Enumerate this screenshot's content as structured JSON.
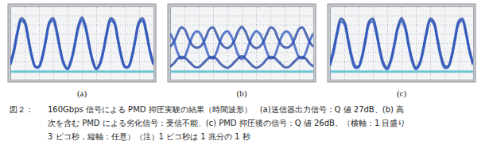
{
  "chart_data": [
    {
      "type": "line",
      "title": "(a)",
      "grid": true,
      "tick_labels": false,
      "xlim": [
        0,
        30
      ],
      "ylim": [
        0,
        1
      ],
      "xticks": [
        0,
        3,
        6,
        9,
        12,
        15,
        18,
        21,
        24,
        27,
        30
      ],
      "yticks": [
        0,
        0.125,
        0.25,
        0.375,
        0.5,
        0.625,
        0.75,
        0.875,
        1
      ],
      "x": [
        0,
        0.75,
        1.5,
        2.25,
        3,
        3.75,
        4.5,
        5.25,
        6,
        6.75,
        7.5,
        8.25,
        9,
        9.75,
        10.5,
        11.25,
        12,
        12.75,
        13.5,
        14.25,
        15,
        15.75,
        16.5,
        17.25,
        18,
        18.75,
        19.5,
        20.25,
        21,
        21.75,
        22.5,
        23.25,
        24,
        24.75,
        25.5,
        26.25,
        27,
        27.75,
        28.5,
        29.25,
        30
      ],
      "series": [
        {
          "color": "#1c3f9e",
          "values": [
            0.218,
            0.403,
            0.658,
            0.836,
            0.797,
            0.572,
            0.33,
            0.18,
            0.18,
            0.33,
            0.572,
            0.797,
            0.836,
            0.658,
            0.403,
            0.218,
            0.152,
            0.268,
            0.485,
            0.735,
            0.85,
            0.735,
            0.485,
            0.268,
            0.152,
            0.218,
            0.403,
            0.658,
            0.836,
            0.797,
            0.572,
            0.33,
            0.18,
            0.18,
            0.33,
            0.572,
            0.797,
            0.836,
            0.658,
            0.403,
            0.218
          ]
        },
        {
          "color": "#2a55c0",
          "values": [
            0.2,
            0.38,
            0.63,
            0.8,
            0.77,
            0.55,
            0.31,
            0.17,
            0.17,
            0.31,
            0.55,
            0.77,
            0.8,
            0.63,
            0.38,
            0.2,
            0.14,
            0.25,
            0.46,
            0.7,
            0.81,
            0.7,
            0.46,
            0.25,
            0.14,
            0.2,
            0.38,
            0.63,
            0.8,
            0.77,
            0.55,
            0.31,
            0.17,
            0.17,
            0.31,
            0.55,
            0.77,
            0.8,
            0.63,
            0.38,
            0.2
          ]
        },
        {
          "color": "#3fb8cc",
          "values": [
            0.11,
            0.11,
            0.11,
            0.11,
            0.11,
            0.11,
            0.11,
            0.11,
            0.11,
            0.11,
            0.11,
            0.11,
            0.11,
            0.11,
            0.11,
            0.11,
            0.11,
            0.11,
            0.11,
            0.11,
            0.11,
            0.11,
            0.11,
            0.11,
            0.11,
            0.11,
            0.11,
            0.11,
            0.11,
            0.11,
            0.11,
            0.11,
            0.11,
            0.11,
            0.11,
            0.11,
            0.11,
            0.11,
            0.11,
            0.11,
            0.11
          ]
        }
      ]
    },
    {
      "type": "line",
      "title": "(b)",
      "grid": true,
      "tick_labels": false,
      "xlim": [
        0,
        30
      ],
      "ylim": [
        0,
        1
      ],
      "xticks": [
        0,
        3,
        6,
        9,
        12,
        15,
        18,
        21,
        24,
        27,
        30
      ],
      "yticks": [
        0,
        0.125,
        0.25,
        0.375,
        0.5,
        0.625,
        0.75,
        0.875,
        1
      ],
      "x": [
        0,
        0.75,
        1.5,
        2.25,
        3,
        3.75,
        4.5,
        5.25,
        6,
        6.75,
        7.5,
        8.25,
        9,
        9.75,
        10.5,
        11.25,
        12,
        12.75,
        13.5,
        14.25,
        15,
        15.75,
        16.5,
        17.25,
        18,
        18.75,
        19.5,
        20.25,
        21,
        21.75,
        22.5,
        23.25,
        24,
        24.75,
        25.5,
        26.25,
        27,
        27.75,
        28.5,
        29.25,
        30
      ],
      "series": [
        {
          "color": "#1c3f9e",
          "values": [
            0.45,
            0.51,
            0.62,
            0.71,
            0.69,
            0.58,
            0.48,
            0.44,
            0.44,
            0.48,
            0.58,
            0.69,
            0.71,
            0.62,
            0.51,
            0.45,
            0.43,
            0.46,
            0.54,
            0.66,
            0.72,
            0.66,
            0.54,
            0.46,
            0.43,
            0.45,
            0.51,
            0.62,
            0.71,
            0.69,
            0.58,
            0.48,
            0.44,
            0.44,
            0.48,
            0.58,
            0.69,
            0.71,
            0.62,
            0.51,
            0.45
          ]
        },
        {
          "color": "#2a55c0",
          "values": [
            0.63,
            0.53,
            0.38,
            0.29,
            0.31,
            0.43,
            0.57,
            0.65,
            0.65,
            0.57,
            0.43,
            0.31,
            0.29,
            0.38,
            0.53,
            0.63,
            0.66,
            0.6,
            0.48,
            0.34,
            0.28,
            0.34,
            0.48,
            0.6,
            0.66,
            0.63,
            0.53,
            0.38,
            0.29,
            0.31,
            0.43,
            0.57,
            0.65,
            0.65,
            0.57,
            0.43,
            0.31,
            0.29,
            0.38,
            0.53,
            0.63
          ]
        },
        {
          "color": "#1c3f9e",
          "values": [
            0.18,
            0.22,
            0.28,
            0.31,
            0.3,
            0.26,
            0.21,
            0.17,
            0.17,
            0.21,
            0.26,
            0.3,
            0.31,
            0.28,
            0.22,
            0.18,
            0.16,
            0.19,
            0.24,
            0.29,
            0.32,
            0.29,
            0.24,
            0.19,
            0.16,
            0.18,
            0.22,
            0.28,
            0.31,
            0.3,
            0.26,
            0.21,
            0.17,
            0.17,
            0.21,
            0.26,
            0.3,
            0.31,
            0.28,
            0.22,
            0.18
          ]
        },
        {
          "color": "#3fb8cc",
          "values": [
            0.11,
            0.11,
            0.11,
            0.11,
            0.11,
            0.11,
            0.11,
            0.11,
            0.11,
            0.11,
            0.11,
            0.11,
            0.11,
            0.11,
            0.11,
            0.11,
            0.11,
            0.11,
            0.11,
            0.11,
            0.11,
            0.11,
            0.11,
            0.11,
            0.11,
            0.11,
            0.11,
            0.11,
            0.11,
            0.11,
            0.11,
            0.11,
            0.11,
            0.11,
            0.11,
            0.11,
            0.11,
            0.11,
            0.11,
            0.11,
            0.11
          ]
        }
      ]
    },
    {
      "type": "line",
      "title": "(c)",
      "grid": true,
      "tick_labels": false,
      "xlim": [
        0,
        30
      ],
      "ylim": [
        0,
        1
      ],
      "xticks": [
        0,
        3,
        6,
        9,
        12,
        15,
        18,
        21,
        24,
        27,
        30
      ],
      "yticks": [
        0,
        0.125,
        0.25,
        0.375,
        0.5,
        0.625,
        0.75,
        0.875,
        1
      ],
      "x": [
        0,
        0.75,
        1.5,
        2.25,
        3,
        3.75,
        4.5,
        5.25,
        6,
        6.75,
        7.5,
        8.25,
        9,
        9.75,
        10.5,
        11.25,
        12,
        12.75,
        13.5,
        14.25,
        15,
        15.75,
        16.5,
        17.25,
        18,
        18.75,
        19.5,
        20.25,
        21,
        21.75,
        22.5,
        23.25,
        24,
        24.75,
        25.5,
        26.25,
        27,
        27.75,
        28.5,
        29.25,
        30
      ],
      "series": [
        {
          "color": "#1c3f9e",
          "values": [
            0.22,
            0.41,
            0.65,
            0.83,
            0.79,
            0.57,
            0.34,
            0.19,
            0.18,
            0.33,
            0.58,
            0.8,
            0.83,
            0.65,
            0.4,
            0.22,
            0.16,
            0.27,
            0.49,
            0.73,
            0.84,
            0.73,
            0.48,
            0.27,
            0.16,
            0.22,
            0.41,
            0.66,
            0.83,
            0.79,
            0.57,
            0.33,
            0.19,
            0.18,
            0.33,
            0.58,
            0.8,
            0.83,
            0.65,
            0.4,
            0.22
          ]
        },
        {
          "color": "#2a55c0",
          "values": [
            0.19,
            0.37,
            0.62,
            0.79,
            0.76,
            0.54,
            0.3,
            0.16,
            0.17,
            0.31,
            0.55,
            0.77,
            0.79,
            0.62,
            0.37,
            0.19,
            0.14,
            0.25,
            0.46,
            0.7,
            0.8,
            0.7,
            0.45,
            0.24,
            0.14,
            0.2,
            0.38,
            0.63,
            0.8,
            0.76,
            0.54,
            0.3,
            0.16,
            0.17,
            0.31,
            0.55,
            0.77,
            0.8,
            0.63,
            0.38,
            0.2
          ]
        },
        {
          "color": "#3fb8cc",
          "values": [
            0.11,
            0.11,
            0.11,
            0.11,
            0.11,
            0.11,
            0.11,
            0.11,
            0.11,
            0.11,
            0.11,
            0.11,
            0.11,
            0.11,
            0.11,
            0.11,
            0.11,
            0.11,
            0.11,
            0.11,
            0.11,
            0.11,
            0.11,
            0.11,
            0.11,
            0.11,
            0.11,
            0.11,
            0.11,
            0.11,
            0.11,
            0.11,
            0.11,
            0.11,
            0.11,
            0.11,
            0.11,
            0.11,
            0.11,
            0.11,
            0.11
          ]
        }
      ]
    }
  ],
  "caption": {
    "label": "図２：",
    "lines": [
      "160Gbps 信号による PMD 抑圧実験の結果（時間波形）　(a)送信器出力信号：Q 値 27dB、(b) 高",
      "次を含む PMD による劣化信号：受信不能、(c) PMD 抑圧後の信号：Q 値 26dB。（横軸：1 目盛り",
      "3 ピコ秒，縦軸：任意）（注）1 ピコ秒は 1 兆分の 1 秒"
    ]
  }
}
